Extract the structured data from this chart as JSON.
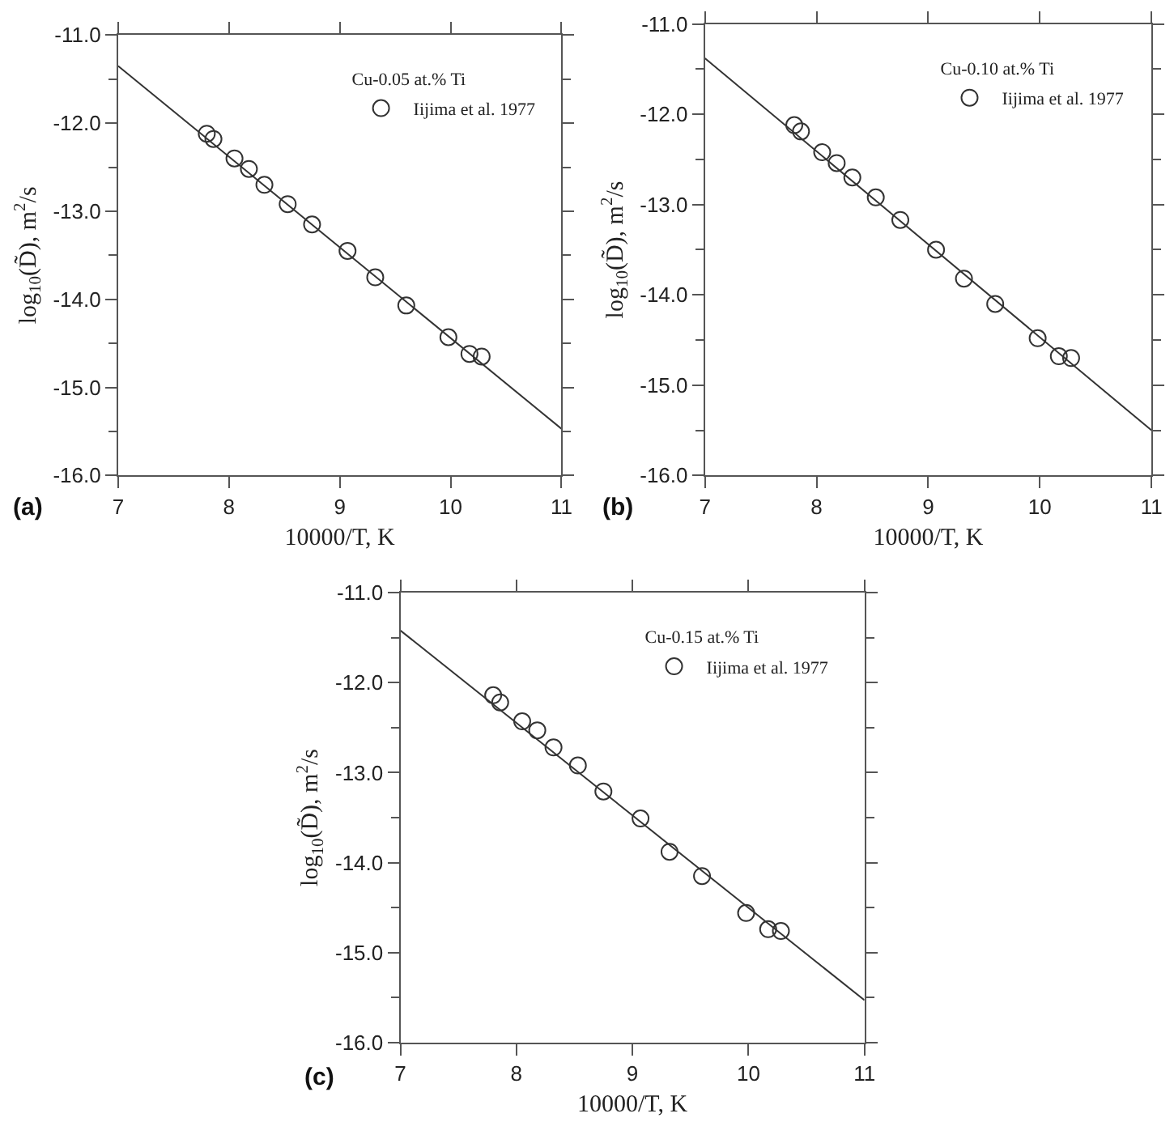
{
  "chart_data": [
    {
      "type": "scatter",
      "annotations": [
        "(a)"
      ],
      "legend_title": "Cu-0.05 at.% Ti",
      "xlabel": "10000/T, K",
      "ylabel": "log$_{10}$(D̃), m$^{2}$/s",
      "xlim": [
        7,
        11
      ],
      "ylim": [
        -16,
        -11
      ],
      "xticks": [
        7,
        8,
        9,
        10,
        11
      ],
      "yticks": [
        {
          "value": -16,
          "label": "-16.0"
        },
        {
          "value": -15.5,
          "label": null
        },
        {
          "value": -15,
          "label": "-15.0"
        },
        {
          "value": -14.5,
          "label": null
        },
        {
          "value": -14,
          "label": "-14.0"
        },
        {
          "value": -13.5,
          "label": null
        },
        {
          "value": -13,
          "label": "-13.0"
        },
        {
          "value": -12.5,
          "label": null
        },
        {
          "value": -12,
          "label": "-12.0"
        },
        {
          "value": -11.5,
          "label": null
        },
        {
          "value": -11,
          "label": "-11.0"
        }
      ],
      "legend": "top right",
      "series": [
        {
          "name": "Iijima et al. 1977",
          "marker": "circle",
          "color": "#333333",
          "x": [
            7.8,
            7.86,
            8.05,
            8.18,
            8.32,
            8.53,
            8.75,
            9.07,
            9.32,
            9.6,
            9.98,
            10.17,
            10.28
          ],
          "values": [
            -12.12,
            -12.18,
            -12.4,
            -12.52,
            -12.7,
            -12.92,
            -13.15,
            -13.45,
            -13.75,
            -14.07,
            -14.43,
            -14.62,
            -14.65
          ]
        },
        {
          "type": "line",
          "color": "#333333",
          "x": [
            7,
            11
          ],
          "values": [
            -11.35,
            -15.47
          ]
        }
      ]
    },
    {
      "type": "scatter",
      "annotations": [
        "(b)"
      ],
      "legend_title": "Cu-0.10 at.% Ti",
      "xlabel": "10000/T, K",
      "ylabel": "log$_{10}$(D̃), m$^{2}$/s",
      "xlim": [
        7,
        11
      ],
      "ylim": [
        -16,
        -11
      ],
      "xticks": [
        7,
        8,
        9,
        10,
        11
      ],
      "yticks": [
        {
          "value": -16,
          "label": "-16.0"
        },
        {
          "value": -15.5,
          "label": null
        },
        {
          "value": -15,
          "label": "-15.0"
        },
        {
          "value": -14.5,
          "label": null
        },
        {
          "value": -14,
          "label": "-14.0"
        },
        {
          "value": -13.5,
          "label": null
        },
        {
          "value": -13,
          "label": "-13.0"
        },
        {
          "value": -12.5,
          "label": null
        },
        {
          "value": -12,
          "label": "-12.0"
        },
        {
          "value": -11.5,
          "label": null
        },
        {
          "value": -11,
          "label": "-11.0"
        }
      ],
      "legend": "top right",
      "series": [
        {
          "name": "Iijima et al. 1977",
          "marker": "circle",
          "color": "#333333",
          "x": [
            7.8,
            7.86,
            8.05,
            8.18,
            8.32,
            8.53,
            8.75,
            9.07,
            9.32,
            9.6,
            9.98,
            10.17,
            10.28
          ],
          "values": [
            -12.12,
            -12.19,
            -12.42,
            -12.54,
            -12.7,
            -12.92,
            -13.17,
            -13.5,
            -13.82,
            -14.1,
            -14.48,
            -14.68,
            -14.7
          ]
        },
        {
          "type": "line",
          "color": "#333333",
          "x": [
            7,
            11
          ],
          "values": [
            -11.38,
            -15.5
          ]
        }
      ]
    },
    {
      "type": "scatter",
      "annotations": [
        "(c)"
      ],
      "legend_title": "Cu-0.15 at.% Ti",
      "xlabel": "10000/T, K",
      "ylabel": "log$_{10}$(D̃), m$^{2}$/s",
      "xlim": [
        7,
        11
      ],
      "ylim": [
        -16,
        -11
      ],
      "xticks": [
        7,
        8,
        9,
        10,
        11
      ],
      "yticks": [
        {
          "value": -16,
          "label": "-16.0"
        },
        {
          "value": -15.5,
          "label": null
        },
        {
          "value": -15,
          "label": "-15.0"
        },
        {
          "value": -14.5,
          "label": null
        },
        {
          "value": -14,
          "label": "-14.0"
        },
        {
          "value": -13.5,
          "label": null
        },
        {
          "value": -13,
          "label": "-13.0"
        },
        {
          "value": -12.5,
          "label": null
        },
        {
          "value": -12,
          "label": "-12.0"
        },
        {
          "value": -11.5,
          "label": null
        },
        {
          "value": -11,
          "label": "-11.0"
        }
      ],
      "legend": "top right",
      "series": [
        {
          "name": "Iijima et al. 1977",
          "marker": "circle",
          "color": "#333333",
          "x": [
            7.8,
            7.86,
            8.05,
            8.18,
            8.32,
            8.53,
            8.75,
            9.07,
            9.32,
            9.6,
            9.98,
            10.17,
            10.28
          ],
          "values": [
            -12.14,
            -12.22,
            -12.43,
            -12.53,
            -12.72,
            -12.92,
            -13.21,
            -13.51,
            -13.88,
            -14.15,
            -14.56,
            -14.74,
            -14.76
          ]
        },
        {
          "type": "line",
          "color": "#333333",
          "x": [
            7,
            11
          ],
          "values": [
            -11.42,
            -15.53
          ]
        }
      ]
    }
  ]
}
